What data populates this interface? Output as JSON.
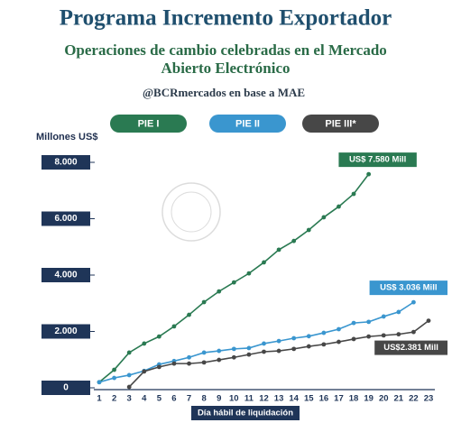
{
  "chart_data": {
    "type": "line",
    "title": "Programa Incremento Exportador",
    "subtitle": [
      "Operaciones de cambio celebradas en el Mercado",
      "Abierto Electrónico"
    ],
    "source": "@BCRmercados en base a MAE",
    "y_label": "Millones US$",
    "x_label": "Día hábil de liquidación",
    "categories": [
      "1",
      "2",
      "3",
      "4",
      "5",
      "6",
      "7",
      "8",
      "9",
      "10",
      "11",
      "12",
      "13",
      "14",
      "15",
      "16",
      "17",
      "18",
      "19",
      "20",
      "21",
      "22",
      "23"
    ],
    "ylim": [
      0,
      8000
    ],
    "yticks": [
      {
        "value": 0,
        "label": "0"
      },
      {
        "value": 2000,
        "label": "2.000"
      },
      {
        "value": 4000,
        "label": "4.000"
      },
      {
        "value": 6000,
        "label": "6.000"
      },
      {
        "value": 8000,
        "label": "8.000"
      }
    ],
    "series": [
      {
        "name": "PIE I",
        "color": "#2a7a52",
        "values": [
          200,
          640,
          1250,
          1570,
          1820,
          2180,
          2590,
          3040,
          3420,
          3740,
          4060,
          4450,
          4900,
          5210,
          5600,
          6050,
          6430,
          6880,
          7580,
          null,
          null,
          null,
          null
        ],
        "value_labels": [
          null,
          null,
          null,
          null,
          null,
          null,
          null,
          null,
          null,
          null,
          null,
          null,
          null,
          null,
          null,
          null,
          null,
          null,
          "US$ 7.580 Mill",
          null,
          null,
          null,
          null
        ]
      },
      {
        "name": "PIE II",
        "color": "#3a96cf",
        "values": [
          200,
          350,
          450,
          600,
          830,
          950,
          1080,
          1250,
          1310,
          1380,
          1410,
          1570,
          1660,
          1760,
          1830,
          1950,
          2080,
          2300,
          2340,
          2530,
          2690,
          3036,
          null
        ],
        "value_labels": [
          null,
          null,
          null,
          null,
          null,
          null,
          null,
          null,
          null,
          null,
          null,
          null,
          null,
          null,
          null,
          null,
          null,
          null,
          null,
          null,
          null,
          "US$ 3.036 Mill",
          null
        ]
      },
      {
        "name": "PIE III*",
        "color": "#474747",
        "values": [
          null,
          null,
          30,
          580,
          740,
          860,
          860,
          900,
          990,
          1080,
          1180,
          1280,
          1310,
          1380,
          1470,
          1540,
          1630,
          1730,
          1820,
          1860,
          1900,
          1980,
          2381
        ],
        "value_labels": [
          null,
          null,
          null,
          null,
          null,
          null,
          null,
          null,
          null,
          null,
          null,
          null,
          null,
          null,
          null,
          null,
          null,
          null,
          null,
          null,
          null,
          null,
          "US$2.381 Mill"
        ]
      }
    ]
  }
}
